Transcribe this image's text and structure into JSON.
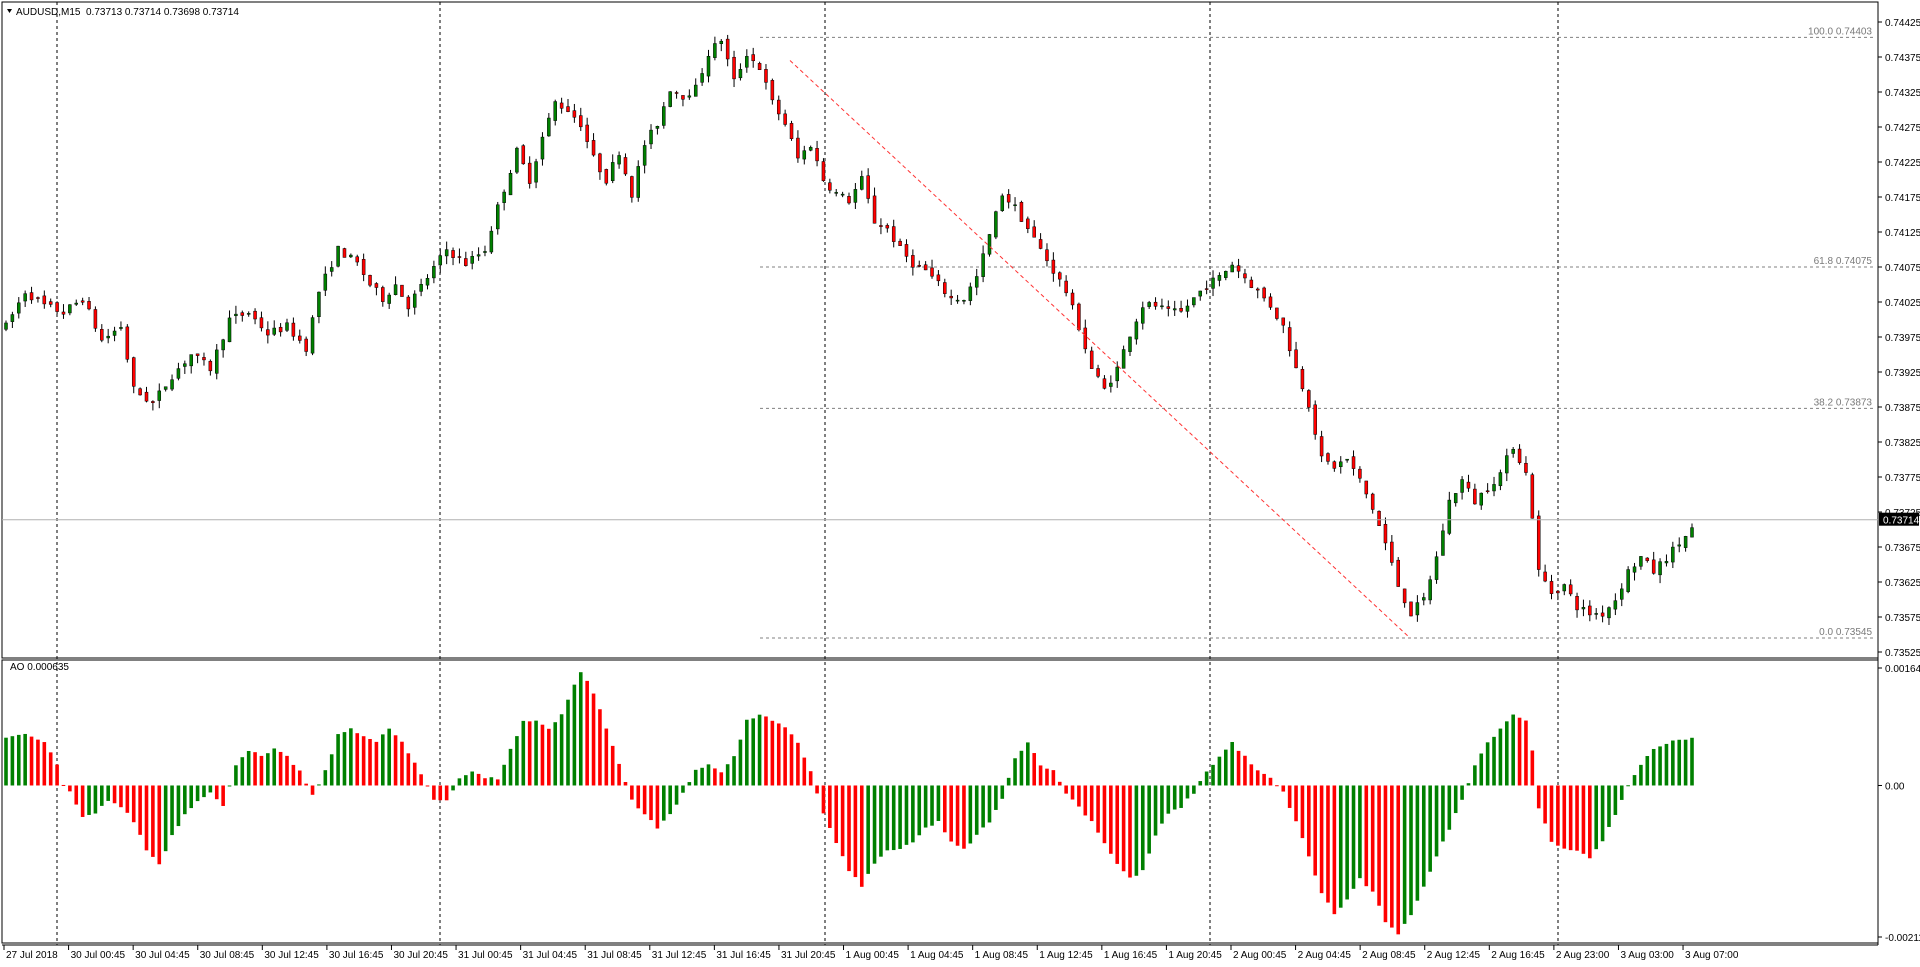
{
  "header": {
    "symbol": "AUDUSD,M15",
    "ohlc": "0.73713 0.73714 0.73698 0.73714",
    "indicator": "AO 0.000635"
  },
  "colors": {
    "bull": "#008000",
    "bear": "#ff0000",
    "grid": "#000000",
    "fib_line": "#808080",
    "trend": "#ff3333",
    "price_tag_bg": "#000000",
    "price_tag_fg": "#ffffff"
  },
  "chart_data": [
    {
      "type": "candlestick",
      "symbol": "AUDUSD",
      "timeframe": "M15",
      "ylim": [
        0.73525,
        0.74445
      ],
      "y_ticks": [
        "0.74425",
        "0.74375",
        "0.74325",
        "0.74275",
        "0.74225",
        "0.74175",
        "0.74125",
        "0.74075",
        "0.74025",
        "0.73975",
        "0.73925",
        "0.73875",
        "0.73825",
        "0.73775",
        "0.73725",
        "0.73675",
        "0.73625",
        "0.73575",
        "0.73525"
      ],
      "current_price": "0.73714",
      "fibonacci": [
        {
          "label": "100.0 0.74403",
          "value": 0.74403
        },
        {
          "label": "61.8 0.74075",
          "value": 0.74075
        },
        {
          "label": "38.2 0.73873",
          "value": 0.73873
        },
        {
          "label": "0.0 0.73545",
          "value": 0.73545
        }
      ],
      "trendline": {
        "from": [
          0.0,
          0.7437
        ],
        "to": [
          1.0,
          0.73545
        ]
      },
      "path": [
        [
          0,
          0.7399
        ],
        [
          3,
          0.7404
        ],
        [
          6,
          0.7402
        ],
        [
          9,
          0.7401
        ],
        [
          12,
          0.7403
        ],
        [
          15,
          0.7397
        ],
        [
          18,
          0.7399
        ],
        [
          20,
          0.739
        ],
        [
          23,
          0.7388
        ],
        [
          26,
          0.7392
        ],
        [
          29,
          0.7395
        ],
        [
          32,
          0.7393
        ],
        [
          35,
          0.74
        ],
        [
          38,
          0.7401
        ],
        [
          41,
          0.7398
        ],
        [
          44,
          0.7399
        ],
        [
          47,
          0.7396
        ],
        [
          49,
          0.7404
        ],
        [
          52,
          0.741
        ],
        [
          55,
          0.7408
        ],
        [
          57,
          0.7405
        ],
        [
          59,
          0.7403
        ],
        [
          61,
          0.7405
        ],
        [
          63,
          0.7402
        ],
        [
          66,
          0.7406
        ],
        [
          69,
          0.741
        ],
        [
          72,
          0.7408
        ],
        [
          75,
          0.741
        ],
        [
          77,
          0.7416
        ],
        [
          80,
          0.7424
        ],
        [
          82,
          0.742
        ],
        [
          84,
          0.7426
        ],
        [
          86,
          0.7431
        ],
        [
          88,
          0.743
        ],
        [
          90,
          0.7428
        ],
        [
          92,
          0.7423
        ],
        [
          94,
          0.742
        ],
        [
          96,
          0.7424
        ],
        [
          98,
          0.7418
        ],
        [
          100,
          0.7425
        ],
        [
          102,
          0.7428
        ],
        [
          104,
          0.7433
        ],
        [
          106,
          0.7432
        ],
        [
          108,
          0.7433
        ],
        [
          110,
          0.7438
        ],
        [
          112,
          0.744
        ],
        [
          114,
          0.7434
        ],
        [
          116,
          0.7438
        ],
        [
          118,
          0.7436
        ],
        [
          120,
          0.7431
        ],
        [
          122,
          0.7428
        ],
        [
          124,
          0.7423
        ],
        [
          126,
          0.7425
        ],
        [
          128,
          0.742
        ],
        [
          130,
          0.7418
        ],
        [
          132,
          0.7417
        ],
        [
          134,
          0.742
        ],
        [
          136,
          0.7414
        ],
        [
          138,
          0.7413
        ],
        [
          140,
          0.741
        ],
        [
          142,
          0.7408
        ],
        [
          144,
          0.7407
        ],
        [
          146,
          0.7405
        ],
        [
          148,
          0.7403
        ],
        [
          150,
          0.7403
        ],
        [
          152,
          0.7406
        ],
        [
          154,
          0.7412
        ],
        [
          156,
          0.7418
        ],
        [
          158,
          0.7416
        ],
        [
          160,
          0.7413
        ],
        [
          162,
          0.741
        ],
        [
          164,
          0.7407
        ],
        [
          166,
          0.7404
        ],
        [
          168,
          0.7399
        ],
        [
          170,
          0.7393
        ],
        [
          172,
          0.739
        ],
        [
          174,
          0.7393
        ],
        [
          176,
          0.7398
        ],
        [
          178,
          0.7402
        ],
        [
          180,
          0.7402
        ],
        [
          182,
          0.7401
        ],
        [
          184,
          0.7401
        ],
        [
          186,
          0.7403
        ],
        [
          188,
          0.7405
        ],
        [
          190,
          0.7406
        ],
        [
          192,
          0.7408
        ],
        [
          194,
          0.7406
        ],
        [
          196,
          0.7404
        ],
        [
          198,
          0.7402
        ],
        [
          200,
          0.7399
        ],
        [
          202,
          0.7393
        ],
        [
          204,
          0.7388
        ],
        [
          206,
          0.738
        ],
        [
          208,
          0.7379
        ],
        [
          210,
          0.738
        ],
        [
          212,
          0.7377
        ],
        [
          214,
          0.7373
        ],
        [
          216,
          0.7368
        ],
        [
          218,
          0.7362
        ],
        [
          220,
          0.7358
        ],
        [
          222,
          0.736
        ],
        [
          224,
          0.7366
        ],
        [
          226,
          0.7374
        ],
        [
          228,
          0.7377
        ],
        [
          230,
          0.7374
        ],
        [
          232,
          0.7376
        ],
        [
          234,
          0.7378
        ],
        [
          236,
          0.7382
        ],
        [
          238,
          0.7378
        ],
        [
          239,
          0.7372
        ],
        [
          240,
          0.7364
        ],
        [
          242,
          0.7361
        ],
        [
          244,
          0.7362
        ],
        [
          246,
          0.7359
        ],
        [
          248,
          0.7358
        ],
        [
          250,
          0.7358
        ],
        [
          252,
          0.736
        ],
        [
          254,
          0.7364
        ],
        [
          256,
          0.7366
        ],
        [
          258,
          0.7364
        ],
        [
          260,
          0.7366
        ],
        [
          262,
          0.7368
        ],
        [
          264,
          0.737
        ]
      ],
      "x_ticks": [
        "27 Jul 2018",
        "30 Jul 00:45",
        "30 Jul 04:45",
        "30 Jul 08:45",
        "30 Jul 12:45",
        "30 Jul 16:45",
        "30 Jul 20:45",
        "31 Jul 00:45",
        "31 Jul 04:45",
        "31 Jul 08:45",
        "31 Jul 12:45",
        "31 Jul 16:45",
        "31 Jul 20:45",
        "1 Aug 00:45",
        "1 Aug 04:45",
        "1 Aug 08:45",
        "1 Aug 12:45",
        "1 Aug 16:45",
        "1 Aug 20:45",
        "2 Aug 00:45",
        "2 Aug 04:45",
        "2 Aug 08:45",
        "2 Aug 12:45",
        "2 Aug 16:45",
        "2 Aug 23:00",
        "3 Aug 03:00",
        "3 Aug 07:00"
      ]
    },
    {
      "type": "bar",
      "name": "AO",
      "ylim": [
        -0.002119,
        0.001643
      ],
      "y_ticks": [
        "0.001643",
        "0.00",
        "-0.002119"
      ],
      "current_value": "0.000635",
      "path": [
        [
          0,
          0.00065
        ],
        [
          3,
          0.00072
        ],
        [
          6,
          0.0006
        ],
        [
          8,
          0.0003
        ],
        [
          9,
          0.0
        ],
        [
          10,
          -0.0001
        ],
        [
          12,
          -0.00045
        ],
        [
          14,
          -0.0004
        ],
        [
          16,
          -0.0002
        ],
        [
          18,
          -0.0003
        ],
        [
          20,
          -0.0005
        ],
        [
          22,
          -0.0009
        ],
        [
          24,
          -0.0011
        ],
        [
          26,
          -0.0007
        ],
        [
          28,
          -0.0004
        ],
        [
          30,
          -0.0002
        ],
        [
          32,
          -0.0001
        ],
        [
          34,
          -0.0003
        ],
        [
          36,
          0.0003
        ],
        [
          38,
          0.0005
        ],
        [
          40,
          0.0004
        ],
        [
          42,
          0.0005
        ],
        [
          44,
          0.0004
        ],
        [
          46,
          0.0002
        ],
        [
          48,
          -0.00015
        ],
        [
          50,
          0.0002
        ],
        [
          52,
          0.0007
        ],
        [
          54,
          0.0008
        ],
        [
          56,
          0.0007
        ],
        [
          58,
          0.0006
        ],
        [
          60,
          0.0008
        ],
        [
          62,
          0.0006
        ],
        [
          64,
          0.0003
        ],
        [
          66,
          0.0
        ],
        [
          67,
          -0.0002
        ],
        [
          69,
          -0.0002
        ],
        [
          71,
          0.0001
        ],
        [
          73,
          0.0002
        ],
        [
          75,
          0.0001
        ],
        [
          77,
          0.0001
        ],
        [
          79,
          0.0005
        ],
        [
          81,
          0.0009
        ],
        [
          83,
          0.0009
        ],
        [
          85,
          0.0008
        ],
        [
          87,
          0.001
        ],
        [
          89,
          0.0014
        ],
        [
          90,
          0.0016
        ],
        [
          92,
          0.0013
        ],
        [
          94,
          0.0008
        ],
        [
          96,
          0.0003
        ],
        [
          98,
          -0.0002
        ],
        [
          100,
          -0.0004
        ],
        [
          102,
          -0.0006
        ],
        [
          104,
          -0.0004
        ],
        [
          106,
          -0.0001
        ],
        [
          108,
          0.0002
        ],
        [
          110,
          0.0003
        ],
        [
          112,
          0.0002
        ],
        [
          114,
          0.0004
        ],
        [
          116,
          0.0009
        ],
        [
          118,
          0.001
        ],
        [
          120,
          0.0009
        ],
        [
          122,
          0.0008
        ],
        [
          124,
          0.0006
        ],
        [
          126,
          0.0002
        ],
        [
          128,
          -0.0004
        ],
        [
          130,
          -0.0008
        ],
        [
          132,
          -0.0012
        ],
        [
          134,
          -0.0014
        ],
        [
          136,
          -0.0011
        ],
        [
          138,
          -0.0009
        ],
        [
          140,
          -0.0009
        ],
        [
          142,
          -0.0008
        ],
        [
          144,
          -0.0006
        ],
        [
          146,
          -0.0005
        ],
        [
          148,
          -0.0008
        ],
        [
          150,
          -0.0009
        ],
        [
          152,
          -0.0007
        ],
        [
          154,
          -0.0005
        ],
        [
          156,
          -0.0002
        ],
        [
          158,
          0.0004
        ],
        [
          160,
          0.0006
        ],
        [
          162,
          0.0003
        ],
        [
          164,
          0.0002
        ],
        [
          166,
          -0.0001
        ],
        [
          168,
          -0.0003
        ],
        [
          170,
          -0.0005
        ],
        [
          172,
          -0.0008
        ],
        [
          174,
          -0.0011
        ],
        [
          176,
          -0.0013
        ],
        [
          178,
          -0.0012
        ],
        [
          180,
          -0.0007
        ],
        [
          182,
          -0.0004
        ],
        [
          184,
          -0.0003
        ],
        [
          186,
          -0.0001
        ],
        [
          188,
          0.0002
        ],
        [
          190,
          0.0004
        ],
        [
          192,
          0.0006
        ],
        [
          194,
          0.0004
        ],
        [
          196,
          0.0002
        ],
        [
          198,
          0.0001
        ],
        [
          200,
          -0.0001
        ],
        [
          202,
          -0.0005
        ],
        [
          204,
          -0.001
        ],
        [
          206,
          -0.0015
        ],
        [
          208,
          -0.0018
        ],
        [
          210,
          -0.0016
        ],
        [
          212,
          -0.0013
        ],
        [
          214,
          -0.0015
        ],
        [
          216,
          -0.0019
        ],
        [
          218,
          -0.0021
        ],
        [
          220,
          -0.0018
        ],
        [
          222,
          -0.0014
        ],
        [
          224,
          -0.001
        ],
        [
          226,
          -0.0006
        ],
        [
          228,
          -0.0002
        ],
        [
          230,
          0.0003
        ],
        [
          232,
          0.0006
        ],
        [
          234,
          0.0008
        ],
        [
          236,
          0.001
        ],
        [
          238,
          0.0009
        ],
        [
          239,
          0.0005
        ],
        [
          240,
          -0.0003
        ],
        [
          242,
          -0.0008
        ],
        [
          244,
          -0.0009
        ],
        [
          246,
          -0.0009
        ],
        [
          248,
          -0.001
        ],
        [
          250,
          -0.0008
        ],
        [
          252,
          -0.0004
        ],
        [
          254,
          0.0
        ],
        [
          256,
          0.0003
        ],
        [
          258,
          0.0005
        ],
        [
          260,
          0.0006
        ],
        [
          262,
          0.00065
        ]
      ]
    }
  ]
}
